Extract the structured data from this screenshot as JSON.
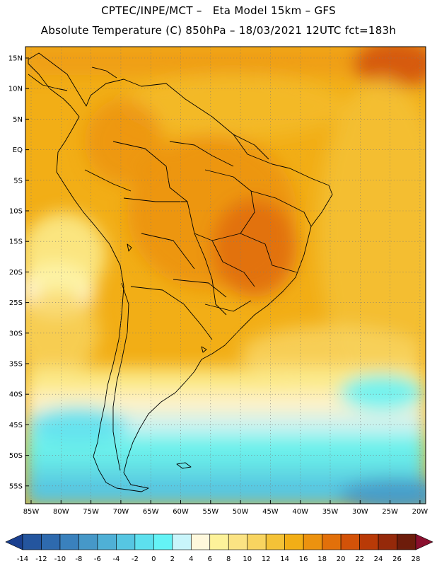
{
  "header": {
    "line1": "CPTEC/INPE/MCT –   Eta Model 15km – GFS",
    "line2": "Absolute Temperature (C) 850hPa – 18/03/2021 12UTC fct=183h"
  },
  "map": {
    "latitude_labels": [
      "15N",
      "10N",
      "5N",
      "EQ",
      "5S",
      "10S",
      "15S",
      "20S",
      "25S",
      "30S",
      "35S",
      "40S",
      "45S",
      "50S",
      "55S"
    ],
    "longitude_labels": [
      "85W",
      "80W",
      "75W",
      "70W",
      "65W",
      "60W",
      "55W",
      "50W",
      "45W",
      "40W",
      "35W",
      "30W",
      "25W",
      "20W"
    ]
  },
  "colorbar": {
    "labels": [
      "-14",
      "-12",
      "-10",
      "-8",
      "-6",
      "-4",
      "-2",
      "0",
      "2",
      "4",
      "6",
      "8",
      "10",
      "12",
      "14",
      "16",
      "18",
      "20",
      "22",
      "24",
      "26",
      "28"
    ],
    "colors": [
      "#1a3f8f",
      "#24559e",
      "#2e6aae",
      "#3a81bd",
      "#4698c8",
      "#4fb0d6",
      "#56c6e2",
      "#5de0ee",
      "#64f3f6",
      "#c9f5fb",
      "#fff8dc",
      "#fdf29a",
      "#fbe383",
      "#f8d460",
      "#f4c237",
      "#f2ae16",
      "#ec920f",
      "#e2700a",
      "#d35208",
      "#b93a07",
      "#95290a",
      "#6d1c0b",
      "#8a0f2e"
    ]
  }
}
